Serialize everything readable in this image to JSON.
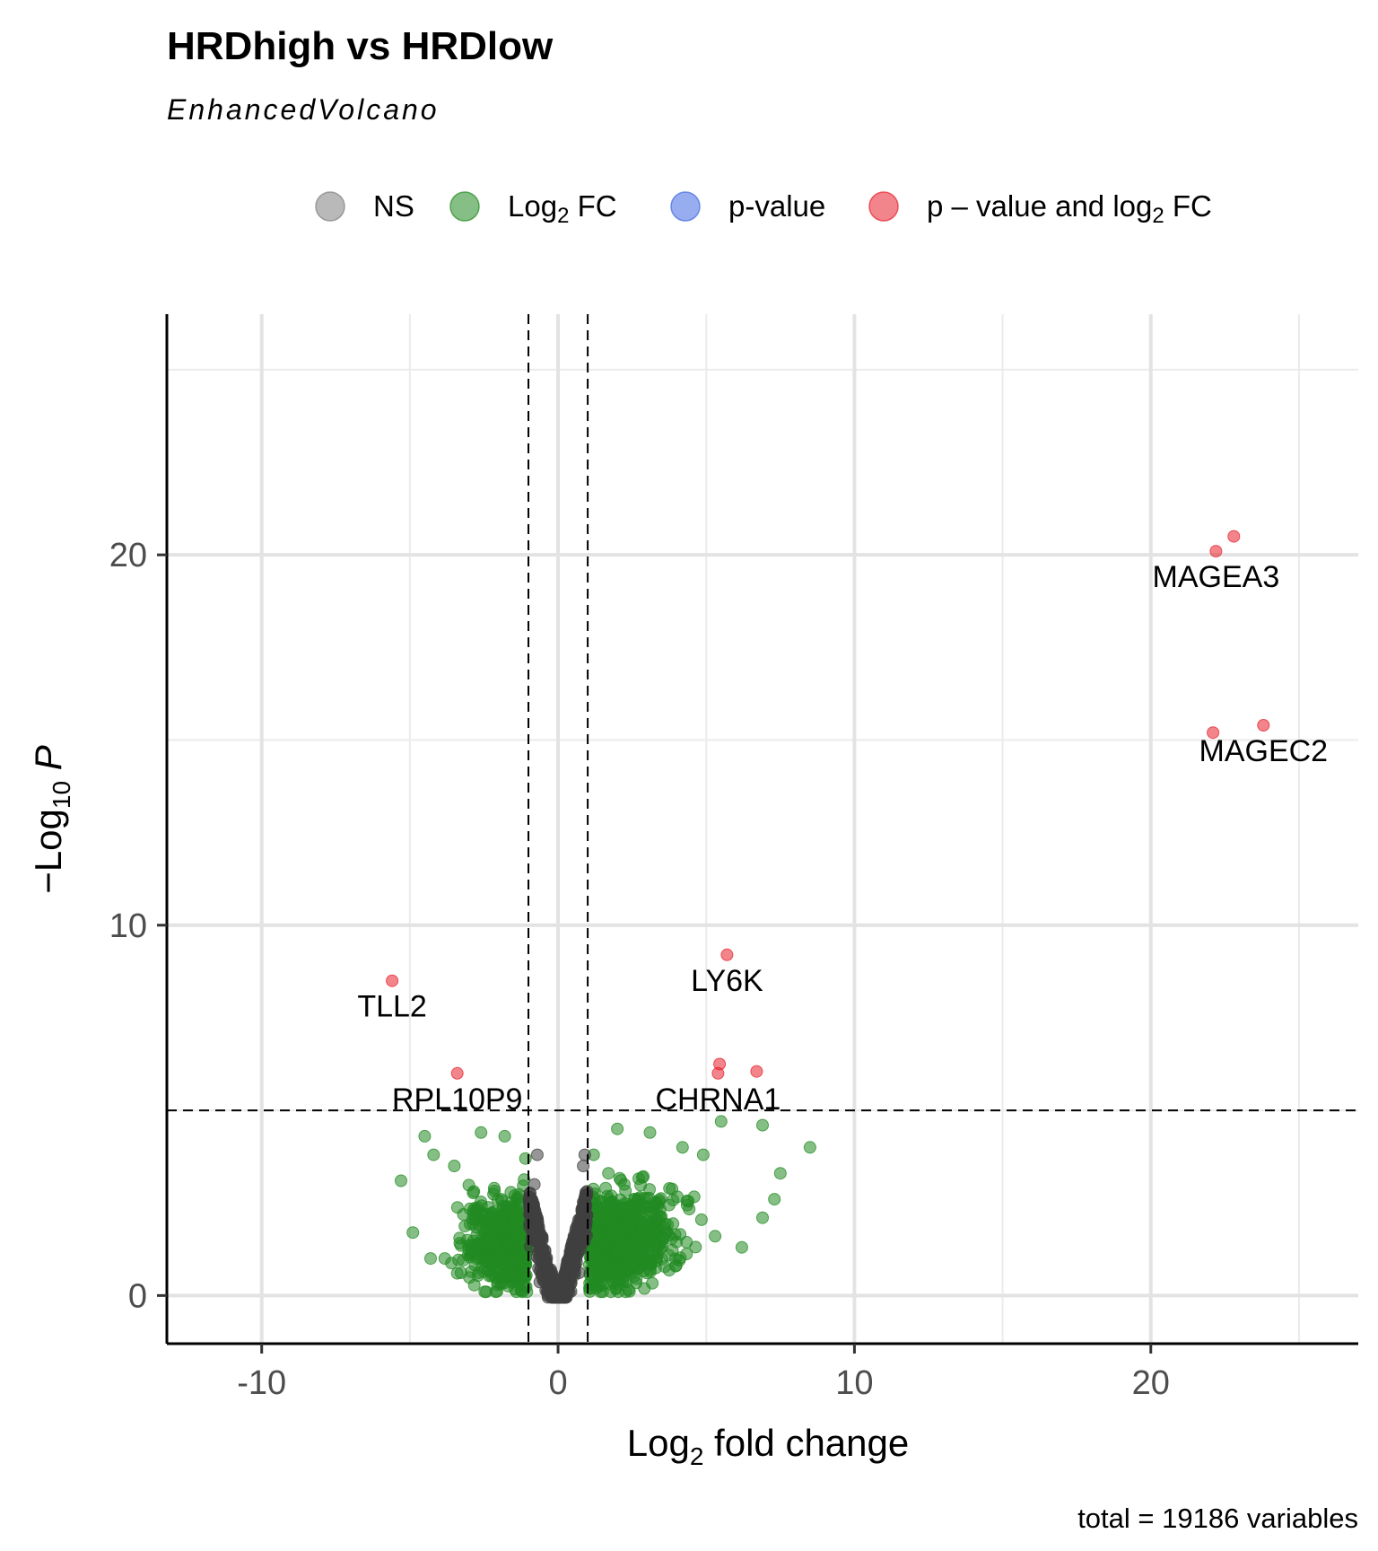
{
  "chart_data": {
    "type": "scatter",
    "title": "HRDhigh vs HRDlow",
    "subtitle": "EnhancedVolcano",
    "caption": "total = 19186 variables",
    "xlabel": {
      "base": "Log",
      "sub": "2",
      "rest": " fold change"
    },
    "ylabel": {
      "pre": "−Log",
      "sub": "10",
      "italic": "P"
    },
    "xlim": [
      -13.2,
      27
    ],
    "ylim": [
      -1.3,
      26.5
    ],
    "x_ticks": [
      -10,
      0,
      10,
      20
    ],
    "x_tick_labels": [
      "-10",
      "0",
      "10",
      "20"
    ],
    "y_ticks": [
      0,
      10,
      20
    ],
    "y_tick_labels": [
      "0",
      "10",
      "20"
    ],
    "x_minor_gridlines": [
      -5,
      5,
      15,
      25
    ],
    "y_minor_gridlines": [
      5,
      15,
      25
    ],
    "grid": true,
    "fc_cutoff": 1,
    "p_cutoff_neglog10": 5,
    "legend_position": "top",
    "legend": [
      {
        "key": "NS",
        "parts": [
          [
            "NS",
            ""
          ]
        ],
        "color": "#808080"
      },
      {
        "key": "Log2FC",
        "parts": [
          [
            "Log",
            ""
          ],
          [
            "2",
            "sub"
          ],
          [
            " FC",
            ""
          ]
        ],
        "color": "#228b22"
      },
      {
        "key": "pvalue",
        "parts": [
          [
            "p-value",
            ""
          ]
        ],
        "color": "#4169e1"
      },
      {
        "key": "both",
        "parts": [
          [
            "p – value and log",
            ""
          ],
          [
            "2",
            "sub"
          ],
          [
            " FC",
            ""
          ]
        ],
        "color": "#e8212c"
      }
    ],
    "colors": {
      "NS": "#404040",
      "Log2FC": "#228b22",
      "pvalue": "#4169e1",
      "both": "#e8212c"
    },
    "labeled_points": [
      {
        "gene": "MAGEA3",
        "x": 22.2,
        "y": 20.1
      },
      {
        "gene": "MAGEC2",
        "x": 23.8,
        "y": 15.4
      },
      {
        "gene": "LY6K",
        "x": 5.7,
        "y": 9.2
      },
      {
        "gene": "TLL2",
        "x": -5.6,
        "y": 8.5
      },
      {
        "gene": "CHRNA1",
        "x": 5.4,
        "y": 6.0
      },
      {
        "gene": "RPL10P9",
        "x": -3.4,
        "y": 6.0
      }
    ],
    "significant_points": [
      {
        "x": 22.8,
        "y": 20.5
      },
      {
        "x": 22.2,
        "y": 20.1
      },
      {
        "x": 23.8,
        "y": 15.4
      },
      {
        "x": 22.1,
        "y": 15.2
      },
      {
        "x": 5.7,
        "y": 9.2
      },
      {
        "x": -5.6,
        "y": 8.5
      },
      {
        "x": 5.45,
        "y": 6.25
      },
      {
        "x": 5.4,
        "y": 6.0
      },
      {
        "x": 6.7,
        "y": 6.05
      },
      {
        "x": -3.4,
        "y": 6.0
      }
    ],
    "fc_points": [
      {
        "x": 8.5,
        "y": 4.0
      },
      {
        "x": 7.5,
        "y": 3.3
      },
      {
        "x": 6.9,
        "y": 4.6
      },
      {
        "x": 5.5,
        "y": 4.7
      },
      {
        "x": 2.0,
        "y": 4.5
      },
      {
        "x": 3.1,
        "y": 4.4
      },
      {
        "x": 4.2,
        "y": 4.0
      },
      {
        "x": 4.9,
        "y": 3.8
      },
      {
        "x": 7.3,
        "y": 2.6
      },
      {
        "x": 6.9,
        "y": 2.1
      },
      {
        "x": 5.3,
        "y": 1.6
      },
      {
        "x": 6.2,
        "y": 1.3
      },
      {
        "x": -4.5,
        "y": 4.3
      },
      {
        "x": -2.6,
        "y": 4.4
      },
      {
        "x": -1.8,
        "y": 4.3
      },
      {
        "x": -4.2,
        "y": 3.8
      },
      {
        "x": -3.5,
        "y": 3.5
      },
      {
        "x": -5.3,
        "y": 3.1
      },
      {
        "x": -4.9,
        "y": 1.7
      },
      {
        "x": -4.3,
        "y": 1.0
      },
      {
        "x": -3.4,
        "y": 0.6
      },
      {
        "x": -1.1,
        "y": 3.7
      },
      {
        "x": 1.2,
        "y": 3.8
      },
      {
        "x": 1.7,
        "y": 3.3
      }
    ],
    "ns_points": [
      {
        "x": -0.7,
        "y": 3.8
      },
      {
        "x": 0.9,
        "y": 3.8
      },
      {
        "x": 0.85,
        "y": 3.5
      },
      {
        "x": -0.8,
        "y": 3.0
      }
    ],
    "clouds": {
      "fc_left": {
        "x_range": [
          -4.6,
          -1.0
        ],
        "y_range": [
          0.1,
          3.4
        ],
        "count": 520
      },
      "fc_right": {
        "x_range": [
          1.0,
          6.6
        ],
        "y_range": [
          0.1,
          3.6
        ],
        "count": 720
      },
      "ns_band": {
        "x_range": [
          -1.0,
          1.0
        ],
        "count": 520
      }
    }
  }
}
